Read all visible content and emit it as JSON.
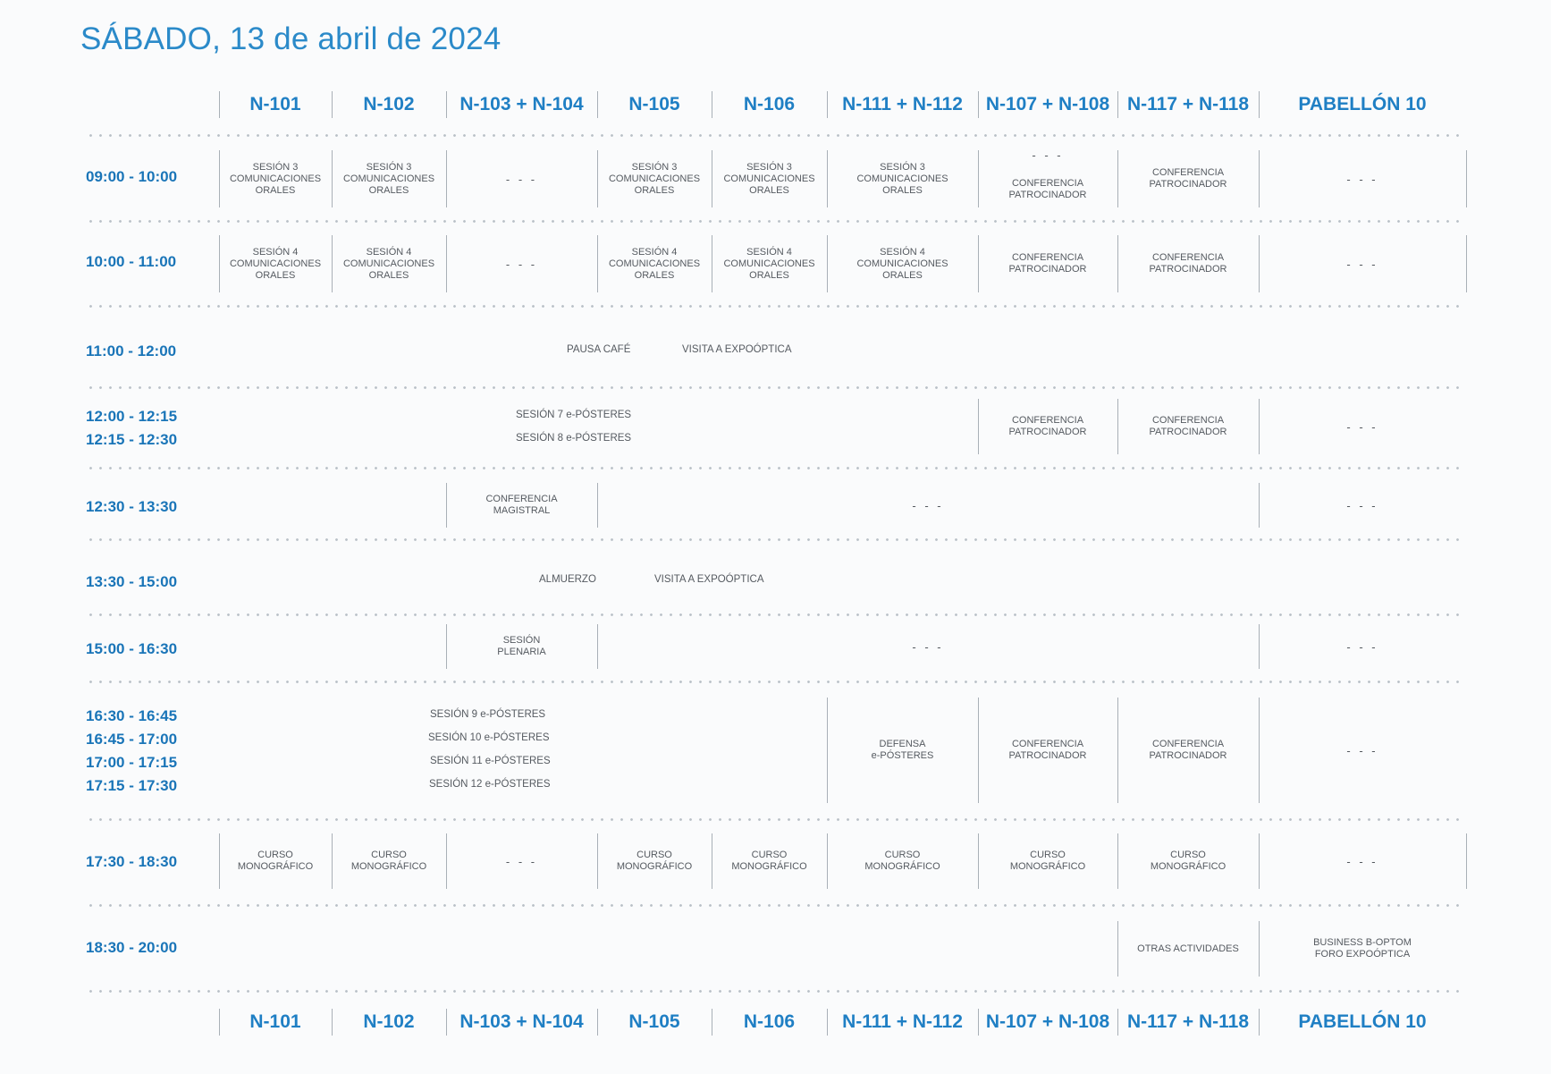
{
  "title": "SÁBADO, 13 de abril de 2024",
  "rooms": [
    "N-101",
    "N-102",
    "N-103 + N-104",
    "N-105",
    "N-106",
    "N-111 + N-112",
    "N-107 + N-108",
    "N-117 + N-118",
    "PABELLÓN 10"
  ],
  "dash": "- - -",
  "rows": {
    "r1": {
      "time": "09:00 - 10:00",
      "c1": "SESIÓN 3\nCOMUNICACIONES\nORALES",
      "c2": "SESIÓN 3\nCOMUNICACIONES\nORALES",
      "c3": "- - -",
      "c4": "SESIÓN 3\nCOMUNICACIONES\nORALES",
      "c5": "SESIÓN 3\nCOMUNICACIONES\nORALES",
      "c6": "SESIÓN 3\nCOMUNICACIONES\nORALES",
      "c7_dash": "- - -",
      "c7": "CONFERENCIA\nPATROCINADOR",
      "c8": "CONFERENCIA\nPATROCINADOR",
      "c9": "- - -"
    },
    "r2": {
      "time": "10:00 - 11:00",
      "c1": "SESIÓN 4\nCOMUNICACIONES\nORALES",
      "c2": "SESIÓN 4\nCOMUNICACIONES\nORALES",
      "c3": "- - -",
      "c4": "SESIÓN 4\nCOMUNICACIONES\nORALES",
      "c5": "SESIÓN 4\nCOMUNICACIONES\nORALES",
      "c6": "SESIÓN 4\nCOMUNICACIONES\nORALES",
      "c7": "CONFERENCIA\nPATROCINADOR",
      "c8": "CONFERENCIA\nPATROCINADOR",
      "c9": "- - -"
    },
    "r3": {
      "time": "11:00 - 12:00",
      "a": "PAUSA CAFÉ",
      "b": "VISITA A EXPOÓPTICA"
    },
    "r4": {
      "time_a": "12:00 - 12:15",
      "time_b": "12:15 - 12:30",
      "s_a": "SESIÓN 7 e-PÓSTERES",
      "s_b": "SESIÓN 8 e-PÓSTERES",
      "c7": "CONFERENCIA\nPATROCINADOR",
      "c8": "CONFERENCIA\nPATROCINADOR",
      "c9": "- - -"
    },
    "r5": {
      "time": "12:30 - 13:30",
      "c3": "CONFERENCIA\nMAGISTRAL",
      "mid": "- - -",
      "c9": "- - -"
    },
    "r6": {
      "time": "13:30 - 15:00",
      "a": "ALMUERZO",
      "b": "VISITA A EXPOÓPTICA"
    },
    "r7": {
      "time": "15:00 - 16:30",
      "c3": "SESIÓN\nPLENARIA",
      "mid": "- - -",
      "c9": "- - -"
    },
    "r8": {
      "times": [
        "16:30 - 16:45",
        "16:45 - 17:00",
        "17:00 - 17:15",
        "17:15 - 17:30"
      ],
      "sessions": [
        "SESIÓN 9 e-PÓSTERES",
        "SESIÓN 10 e-PÓSTERES",
        "SESIÓN 11 e-PÓSTERES",
        "SESIÓN 12 e-PÓSTERES"
      ],
      "c6": "DEFENSA\ne-PÓSTERES",
      "c7": "CONFERENCIA\nPATROCINADOR",
      "c8": "CONFERENCIA\nPATROCINADOR",
      "c9": "- - -"
    },
    "r9": {
      "time": "17:30 - 18:30",
      "c1": "CURSO\nMONOGRÁFICO",
      "c2": "CURSO\nMONOGRÁFICO",
      "c3": "- - -",
      "c4": "CURSO\nMONOGRÁFICO",
      "c5": "CURSO\nMONOGRÁFICO",
      "c6": "CURSO\nMONOGRÁFICO",
      "c7": "CURSO\nMONOGRÁFICO",
      "c8": "CURSO\nMONOGRÁFICO",
      "c9": "- - -"
    },
    "r10": {
      "time": "18:30 - 20:00",
      "c8": "OTRAS ACTIVIDADES",
      "c9": "BUSINESS B-OPTOM\nFORO EXPOÓPTICA"
    }
  },
  "colors": {
    "title": "#2b8ac9",
    "header": "#1f7fc4",
    "time": "#1a75b8",
    "text": "#555a60"
  }
}
